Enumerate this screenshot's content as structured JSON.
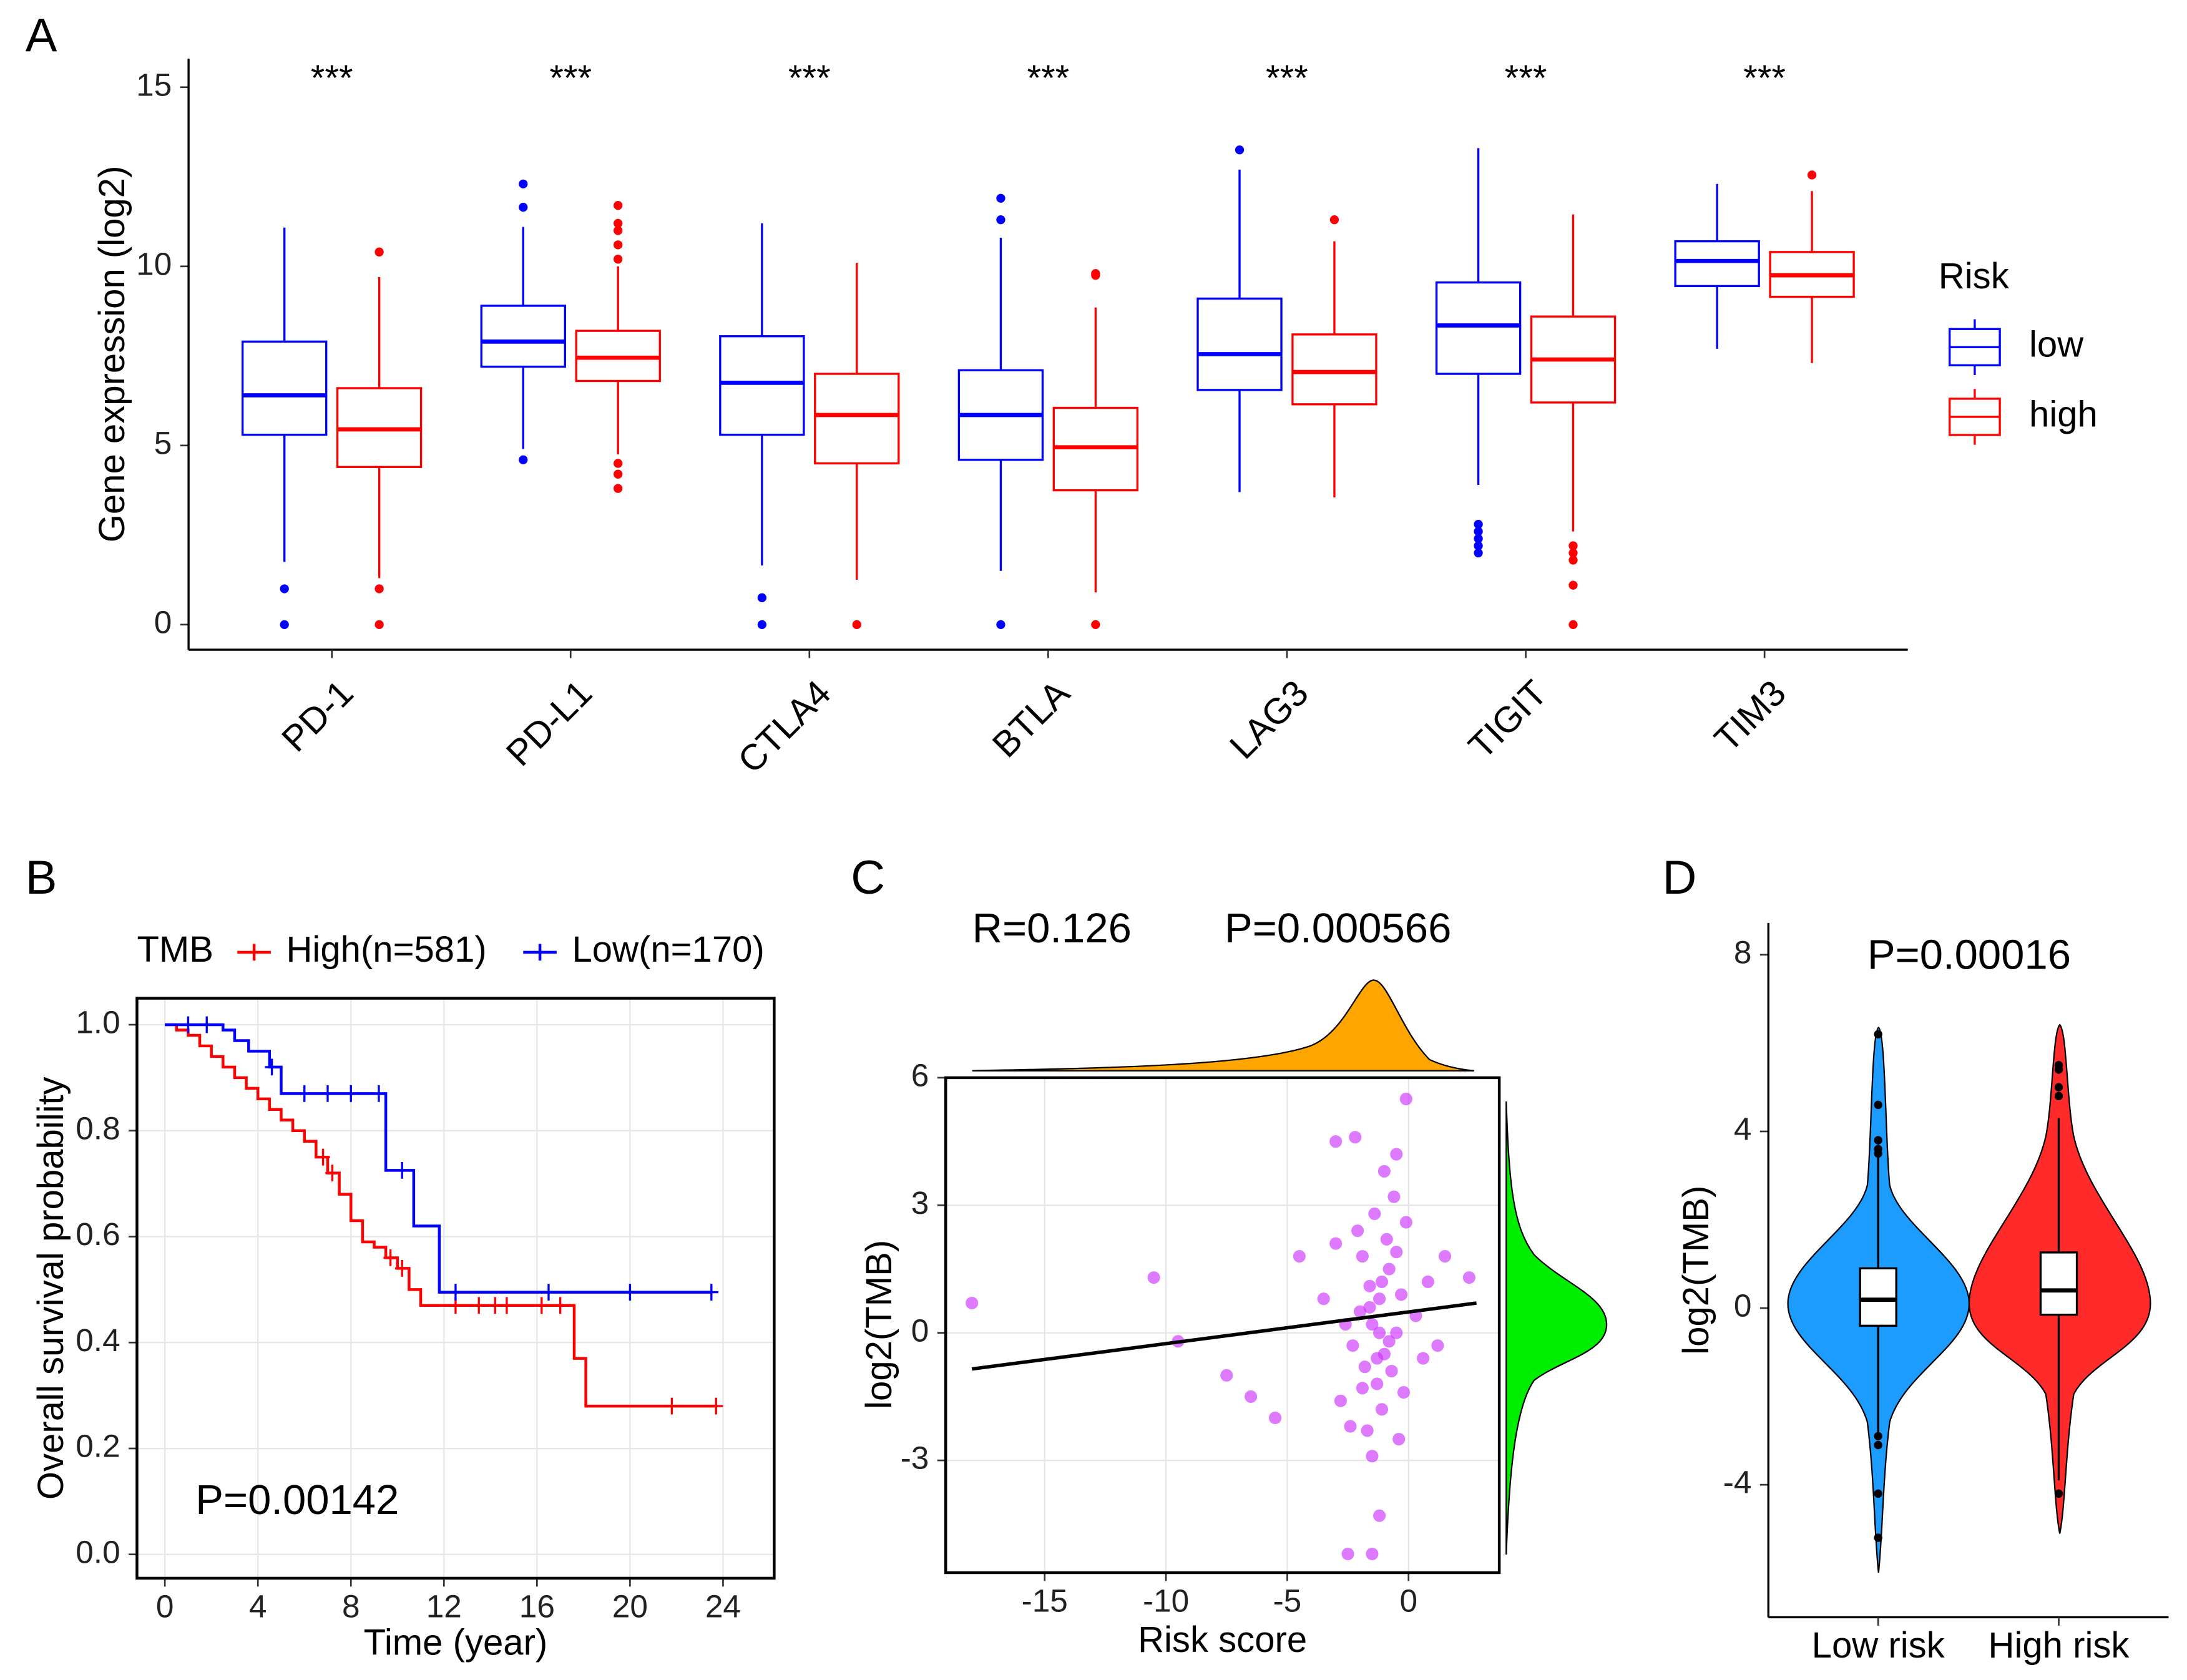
{
  "chart_data": [
    {
      "type": "box",
      "panel": "A",
      "ylabel": "Gene expression (log2)",
      "categories": [
        "PD-1",
        "PD-L1",
        "CTLA4",
        "BTLA",
        "LAG3",
        "TIGIT",
        "TIM3"
      ],
      "annotations": [
        "***",
        "***",
        "***",
        "***",
        "***",
        "***",
        "***"
      ],
      "ylim": [
        -0.7,
        15.8
      ],
      "yticks": [
        0,
        5,
        10,
        15
      ],
      "legend_title": "Risk",
      "legend_position": "right",
      "series": [
        {
          "name": "low",
          "color": "#0000ff",
          "boxes": [
            {
              "min": 1.75,
              "q1": 5.3,
              "median": 6.4,
              "q3": 7.9,
              "max": 11.08,
              "outliers": [
                1.0,
                0
              ]
            },
            {
              "min": 4.9,
              "q1": 7.2,
              "median": 7.9,
              "q3": 8.9,
              "max": 11.1,
              "outliers": [
                12.3,
                11.65,
                4.6
              ]
            },
            {
              "min": 1.65,
              "q1": 5.3,
              "median": 6.75,
              "q3": 8.05,
              "max": 11.2,
              "outliers": [
                0.75,
                0
              ]
            },
            {
              "min": 1.5,
              "q1": 4.6,
              "median": 5.85,
              "q3": 7.1,
              "max": 10.8,
              "outliers": [
                11.9,
                11.3,
                0
              ]
            },
            {
              "min": 3.7,
              "q1": 6.55,
              "median": 7.55,
              "q3": 9.1,
              "max": 12.7,
              "outliers": [
                13.25
              ]
            },
            {
              "min": 3.9,
              "q1": 7.0,
              "median": 8.35,
              "q3": 9.55,
              "max": 13.3,
              "outliers": [
                2.8,
                2.6,
                2.4,
                2.2,
                2.0
              ]
            },
            {
              "min": 7.7,
              "q1": 9.45,
              "median": 10.15,
              "q3": 10.7,
              "max": 12.3,
              "outliers": []
            }
          ]
        },
        {
          "name": "high",
          "color": "#ff0000",
          "boxes": [
            {
              "min": 1.3,
              "q1": 4.4,
              "median": 5.45,
              "q3": 6.6,
              "max": 9.7,
              "outliers": [
                10.4,
                1.0,
                0
              ]
            },
            {
              "min": 4.75,
              "q1": 6.8,
              "median": 7.45,
              "q3": 8.2,
              "max": 10.0,
              "outliers": [
                11.7,
                11.2,
                11.0,
                10.6,
                10.2,
                4.5,
                4.2,
                3.8
              ]
            },
            {
              "min": 1.25,
              "q1": 4.5,
              "median": 5.85,
              "q3": 7.0,
              "max": 10.1,
              "outliers": [
                0
              ]
            },
            {
              "min": 0.9,
              "q1": 3.75,
              "median": 4.95,
              "q3": 6.05,
              "max": 8.85,
              "outliers": [
                9.8,
                9.75,
                0
              ]
            },
            {
              "min": 3.55,
              "q1": 6.15,
              "median": 7.05,
              "q3": 8.1,
              "max": 10.7,
              "outliers": [
                11.3
              ]
            },
            {
              "min": 2.6,
              "q1": 6.2,
              "median": 7.4,
              "q3": 8.6,
              "max": 11.45,
              "outliers": [
                2.2,
                2.0,
                1.8,
                1.1,
                0
              ]
            },
            {
              "min": 7.3,
              "q1": 9.15,
              "median": 9.75,
              "q3": 10.4,
              "max": 12.1,
              "outliers": [
                12.55
              ]
            }
          ]
        }
      ]
    },
    {
      "type": "step",
      "panel": "B",
      "xlabel": "Time (year)",
      "ylabel": "Overall survival probability",
      "legend_title": "TMB",
      "legend_position": "top",
      "annotation": "P=0.00142",
      "grid": true,
      "xlim": [
        -1.2,
        26.2
      ],
      "xticks": [
        0,
        4,
        8,
        12,
        16,
        20,
        24
      ],
      "ylim": [
        -0.045,
        1.05
      ],
      "yticks": [
        {
          "value": 0,
          "label": "0.0"
        },
        0.2,
        0.4,
        0.6,
        0.8,
        {
          "value": 1,
          "label": "1.0"
        }
      ],
      "series": [
        {
          "name": "High(n=581)",
          "color": "#ff0000",
          "x": [
            0,
            0.5,
            1,
            1.5,
            2,
            2.5,
            3,
            3.5,
            4,
            4.5,
            5,
            5.5,
            6,
            6.5,
            7,
            7.5,
            8,
            8.5,
            9,
            9.5,
            10,
            10.5,
            11,
            17.6,
            18.1,
            23.7
          ],
          "values": [
            1.0,
            0.99,
            0.98,
            0.96,
            0.94,
            0.92,
            0.9,
            0.88,
            0.86,
            0.84,
            0.82,
            0.8,
            0.78,
            0.75,
            0.72,
            0.68,
            0.63,
            0.59,
            0.58,
            0.56,
            0.54,
            0.5,
            0.47,
            0.37,
            0.28,
            0.28
          ],
          "censored": [
            6.8,
            7.2,
            9.7,
            10.2,
            12.5,
            13.5,
            14.2,
            14.7,
            16.2,
            17.0,
            21.8,
            23.7
          ]
        },
        {
          "name": "Low(n=170)",
          "color": "#0000ff",
          "x": [
            0,
            2.5,
            3,
            3.6,
            4.5,
            5,
            9.5,
            10.7,
            11.8,
            23.5
          ],
          "values": [
            1.0,
            0.99,
            0.97,
            0.95,
            0.92,
            0.87,
            0.725,
            0.62,
            0.495,
            0.495
          ],
          "censored": [
            1.0,
            1.8,
            4.6,
            6.0,
            7.0,
            8.0,
            9.2,
            10.2,
            12.5,
            16.5,
            20.0,
            23.5
          ]
        }
      ]
    },
    {
      "type": "scatter",
      "panel": "C",
      "xlabel": "Risk score",
      "ylabel": "log2(TMB)",
      "annotations": [
        "R=0.126",
        "P=0.000566"
      ],
      "grid": true,
      "color": "#cc33ff",
      "xlim": [
        -19.08,
        3.74
      ],
      "xticks": [
        -15,
        -10,
        -5,
        0
      ],
      "ylim": [
        -5.64,
        6
      ],
      "yticks": [
        -3,
        0,
        3,
        6
      ],
      "x": [
        -18,
        -10.5,
        -9.5,
        -7.5,
        -6.5,
        -5.5,
        -4.5,
        -3,
        -2.2,
        -1.2,
        -1.5,
        -2.5,
        -0.1,
        -0.5,
        2.5,
        1.5,
        -1.5,
        -1.2,
        -1.0,
        -0.8,
        -1.8,
        -2.0,
        -0.5,
        -1.3,
        -0.9,
        -1.6,
        -2.3,
        -0.3,
        -1.1,
        -0.7,
        -1.9,
        -1.4,
        -0.6,
        -2.6,
        -1.7,
        -0.2,
        0.3,
        0.6,
        -1.0,
        -2.8,
        -3.5,
        -1.5,
        0.8,
        -0.4,
        -2.1,
        -1.2,
        -0.8,
        -1.6,
        -1.1,
        -1.9,
        -0.5,
        1.2,
        -3.0,
        -2.4,
        -0.1,
        -1.3
      ],
      "y": [
        0.7,
        1.3,
        -0.2,
        -1.0,
        -1.5,
        -2.0,
        1.8,
        4.5,
        4.6,
        -4.3,
        -5.2,
        -5.2,
        5.5,
        4.2,
        1.3,
        1.8,
        0.2,
        0.8,
        -0.5,
        1.5,
        -0.8,
        0.5,
        0.0,
        -1.2,
        2.2,
        1.1,
        -0.3,
        0.9,
        -1.8,
        -0.9,
        1.8,
        2.8,
        3.2,
        0.2,
        -2.3,
        -1.4,
        0.4,
        -0.6,
        3.8,
        -1.6,
        0.8,
        -2.9,
        1.2,
        -2.5,
        2.4,
        0.0,
        -0.2,
        0.6,
        1.2,
        -1.3,
        1.9,
        -0.3,
        2.1,
        -2.2,
        2.6,
        -0.6
      ],
      "fit": {
        "x": [
          -18,
          2.8
        ],
        "y": [
          -0.85,
          0.7
        ]
      }
    },
    {
      "type": "violin",
      "panel": "D",
      "ylabel": "log2(TMB)",
      "annotation": "P=0.00016",
      "categories": [
        "Low risk",
        "High risk"
      ],
      "ylim": [
        -7.0,
        8.72
      ],
      "yticks": [
        -4,
        0,
        4,
        8
      ],
      "boxes": [
        {
          "min": -2.9,
          "q1": -0.4,
          "median": 0.19,
          "q3": 0.9,
          "max": 3.7,
          "outliers": [
            6.2,
            4.6,
            3.8,
            3.6,
            3.5,
            -2.9,
            -3.1,
            -4.2,
            -5.2
          ]
        },
        {
          "min": -3.9,
          "q1": -0.15,
          "median": 0.4,
          "q3": 1.26,
          "max": 4.3,
          "outliers": [
            5.5,
            5.4,
            5.0,
            4.8,
            -4.2
          ]
        }
      ]
    }
  ]
}
